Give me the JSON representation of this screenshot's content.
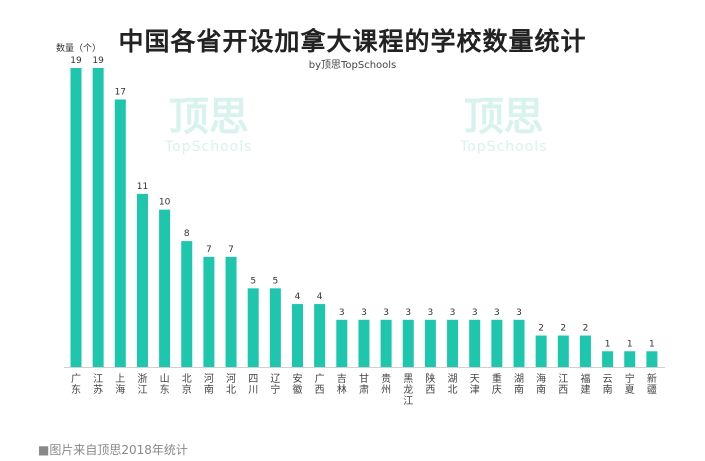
{
  "chart_data": {
    "type": "bar",
    "title": "中国各省开设加拿大课程的学校数量统计",
    "subtitle": "by顶思TopSchools",
    "ylabel": "数量（个）",
    "xlabel": "",
    "categories": [
      "广东",
      "江苏",
      "上海",
      "浙江",
      "山东",
      "北京",
      "河南",
      "河北",
      "四川",
      "辽宁",
      "安徽",
      "广西",
      "吉林",
      "甘肃",
      "贵州",
      "黑龙江",
      "陕西",
      "湖北",
      "天津",
      "重庆",
      "湖南",
      "海南",
      "江西",
      "福建",
      "云南",
      "宁夏",
      "新疆"
    ],
    "values": [
      19,
      19,
      17,
      11,
      10,
      8,
      7,
      7,
      5,
      5,
      4,
      4,
      3,
      3,
      3,
      3,
      3,
      3,
      3,
      3,
      3,
      2,
      2,
      2,
      1,
      1,
      1
    ],
    "ylim": [
      0,
      19
    ],
    "grid": false,
    "bar_color": "#1fc6ae"
  },
  "watermark": {
    "logo": "顶思",
    "text": "TopSchools"
  },
  "footer": "■图片来自顶思2018年统计"
}
